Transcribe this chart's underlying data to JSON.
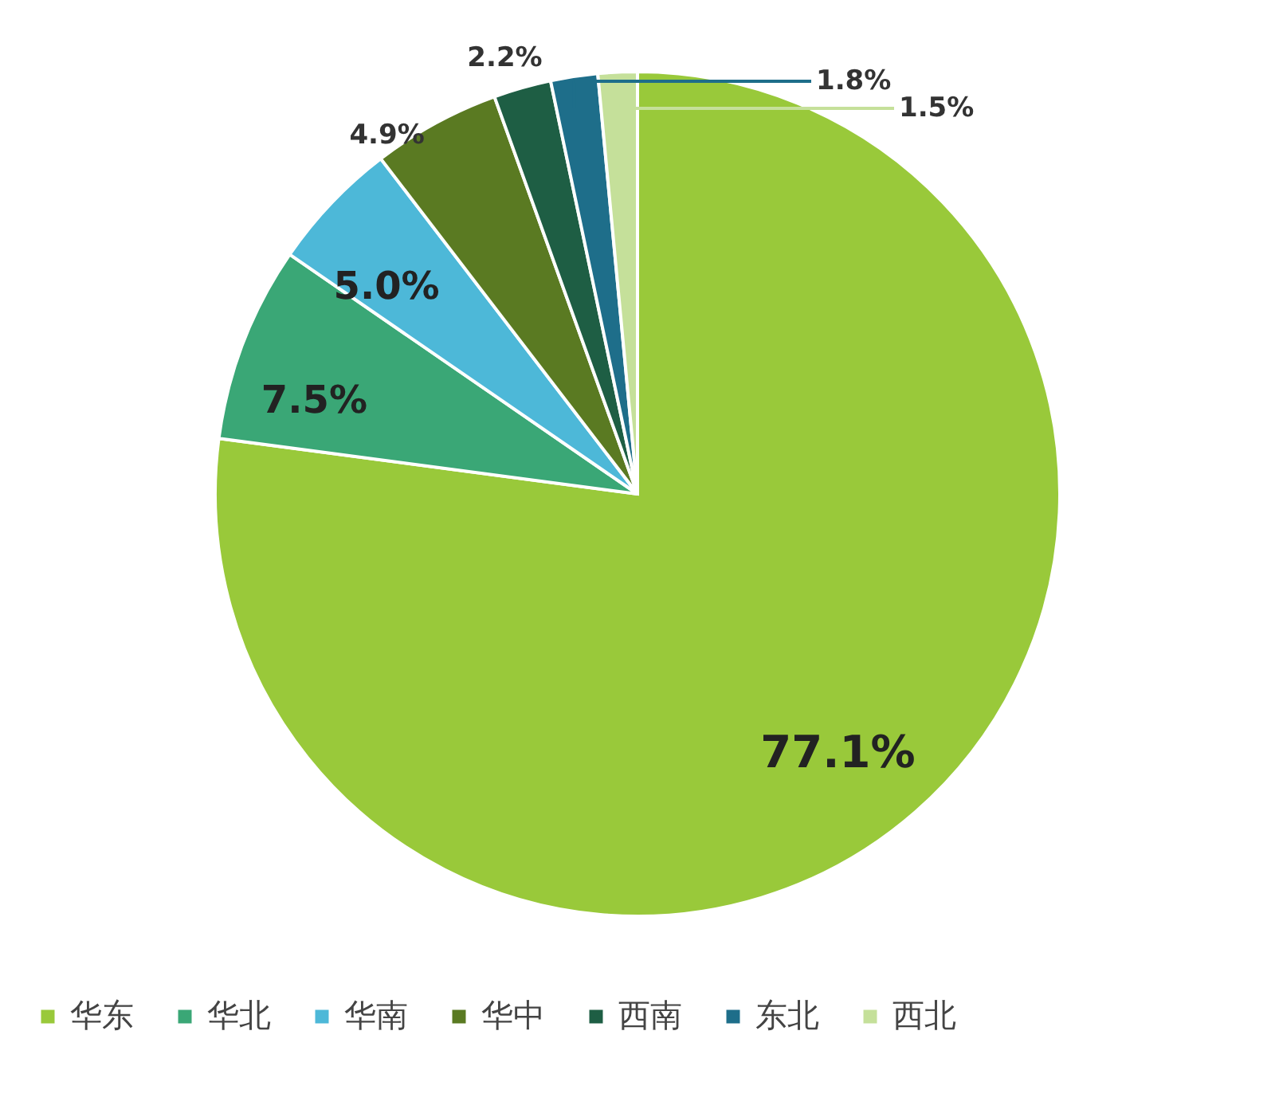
{
  "chart_data": {
    "type": "pie",
    "categories": [
      "华东",
      "华北",
      "华南",
      "华中",
      "西南",
      "东北",
      "西北"
    ],
    "values": [
      77.1,
      7.5,
      5.0,
      4.9,
      2.2,
      1.8,
      1.5
    ],
    "colors": [
      "#99c93a",
      "#3aa776",
      "#4db8d8",
      "#5a7a22",
      "#1e5e44",
      "#1e6e8a",
      "#c5e09a"
    ],
    "value_labels": [
      "77.1%",
      "7.5%",
      "5.0%",
      "4.9%",
      "2.2%",
      "1.8%",
      "1.5%"
    ],
    "legend": "bottom"
  }
}
